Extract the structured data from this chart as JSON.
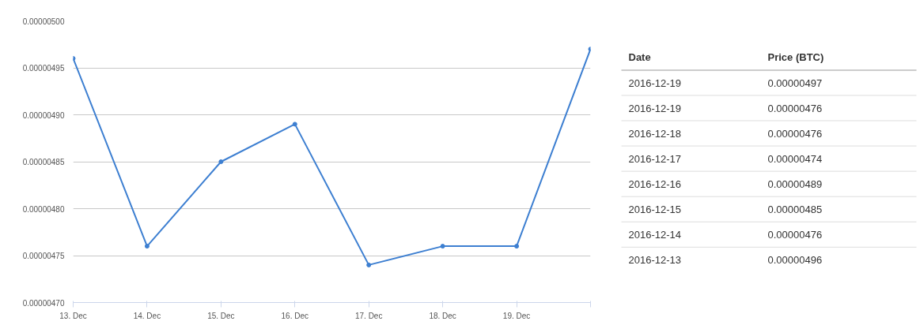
{
  "chart_data": [
    {
      "type": "line",
      "categories": [
        "13. Dec",
        "14. Dec",
        "15. Dec",
        "16. Dec",
        "17. Dec",
        "18. Dec",
        "19. Dec",
        null
      ],
      "series": [
        {
          "color": "#3d7fd1",
          "values": [
            4.96e-06,
            4.76e-06,
            4.85e-06,
            4.89e-06,
            4.74e-06,
            4.76e-06,
            4.76e-06,
            4.97e-06
          ]
        }
      ],
      "ylim": [
        4.7e-06,
        5e-06
      ],
      "yticks": [
        {
          "value": 4.7e-06,
          "label": "0.00000470"
        },
        {
          "value": 4.75e-06,
          "label": "0.00000475"
        },
        {
          "value": 4.8e-06,
          "label": "0.00000480"
        },
        {
          "value": 4.85e-06,
          "label": "0.00000485"
        },
        {
          "value": 4.9e-06,
          "label": "0.00000490"
        },
        {
          "value": 4.95e-06,
          "label": "0.00000495"
        },
        {
          "value": 5e-06,
          "label": "0.00000500"
        }
      ],
      "grid": "y",
      "marker": "circle",
      "line_style": "solid"
    },
    {
      "type": "other",
      "annotations": [
        "Date",
        "Price (BTC)",
        "2016-12-19",
        "0.00000497",
        "2016-12-19",
        "0.00000476",
        "2016-12-18",
        "0.00000476",
        "2016-12-17",
        "0.00000474",
        "2016-12-16",
        "0.00000489",
        "2016-12-15",
        "0.00000485",
        "2016-12-14",
        "0.00000476",
        "2016-12-13",
        "0.00000496"
      ]
    }
  ]
}
